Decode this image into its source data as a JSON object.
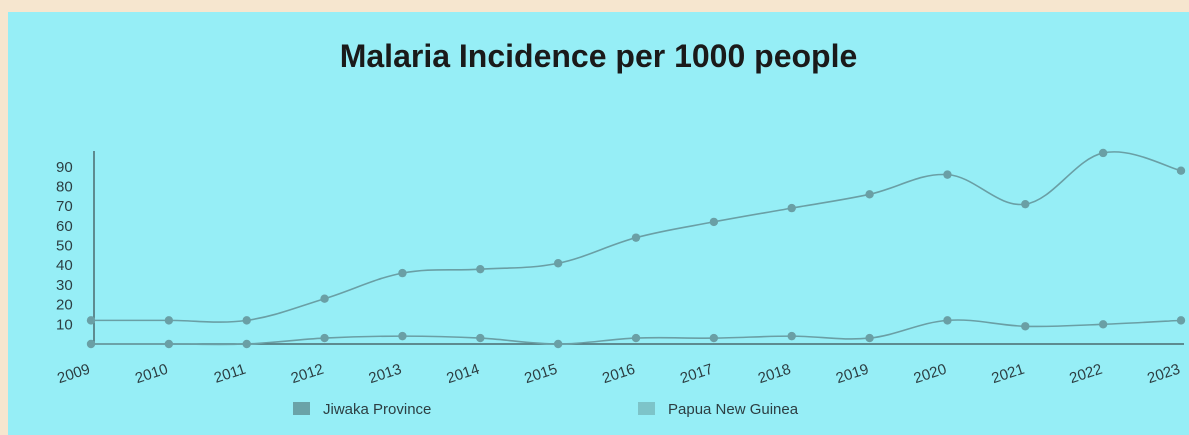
{
  "chart_data": {
    "type": "line",
    "title": "Malaria Incidence per 1000 people",
    "x": [
      "2009",
      "2010",
      "2011",
      "2012",
      "2013",
      "2014",
      "2015",
      "2016",
      "2017",
      "2018",
      "2019",
      "2020",
      "2021",
      "2022",
      "2023"
    ],
    "yticks": [
      10,
      20,
      30,
      40,
      50,
      60,
      70,
      80,
      90
    ],
    "ylim": [
      0,
      100
    ],
    "grid": false,
    "legend_position": "bottom",
    "series": [
      {
        "name": "Jiwaka Province",
        "color": "#6aa3a8",
        "values": [
          0,
          0,
          0,
          3,
          4,
          3,
          0,
          3,
          3,
          4,
          3,
          12,
          9,
          10,
          12
        ]
      },
      {
        "name": "Papua New Guinea",
        "color": "#7dc4c9",
        "values": [
          12,
          12,
          12,
          23,
          36,
          38,
          41,
          54,
          62,
          69,
          76,
          86,
          71,
          97,
          88
        ]
      }
    ],
    "line_color": "#6a9fa5"
  }
}
